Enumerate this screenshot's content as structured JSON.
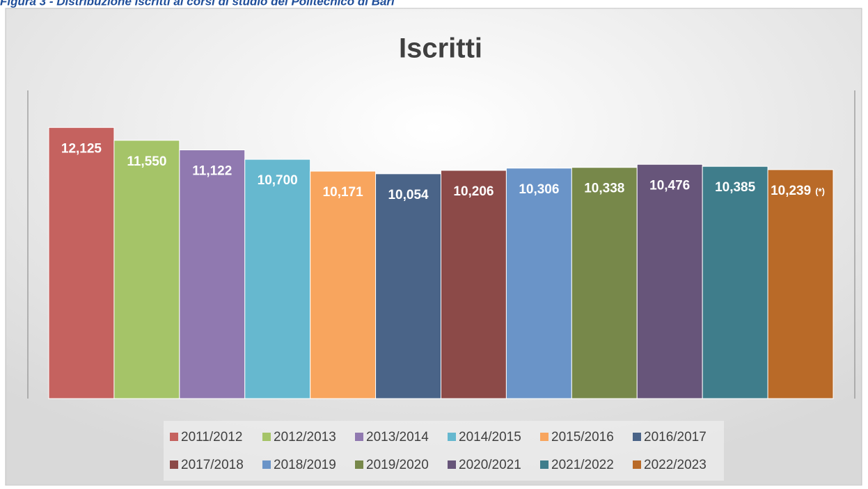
{
  "caption": "Figura 3 - Distribuzione iscritti ai corsi di studio del Politecnico di Bari",
  "chart_data": {
    "type": "bar",
    "title": "Iscritti",
    "ylim": [
      0,
      14000
    ],
    "legend": "bottom",
    "annotation": "(*)",
    "series": [
      {
        "name": "2011/2012",
        "color": "#c5625f",
        "values": [
          12125
        ],
        "value_labels": [
          "12,125"
        ]
      },
      {
        "name": "2012/2013",
        "color": "#a5c468",
        "values": [
          11550
        ],
        "value_labels": [
          "11,550"
        ]
      },
      {
        "name": "2013/2014",
        "color": "#9079b0",
        "values": [
          11122
        ],
        "value_labels": [
          "11,122"
        ]
      },
      {
        "name": "2014/2015",
        "color": "#66b8cf",
        "values": [
          10700
        ],
        "value_labels": [
          "10,700"
        ]
      },
      {
        "name": "2015/2016",
        "color": "#f8a55e",
        "values": [
          10171
        ],
        "value_labels": [
          "10,171"
        ]
      },
      {
        "name": "2016/2017",
        "color": "#4a6488",
        "values": [
          10054
        ],
        "value_labels": [
          "10,054"
        ]
      },
      {
        "name": "2017/2018",
        "color": "#8c4a48",
        "values": [
          10206
        ],
        "value_labels": [
          "10,206"
        ]
      },
      {
        "name": "2018/2019",
        "color": "#6a94c8",
        "values": [
          10306
        ],
        "value_labels": [
          "10,306"
        ]
      },
      {
        "name": "2019/2020",
        "color": "#77884a",
        "values": [
          10338
        ],
        "value_labels": [
          "10,338"
        ]
      },
      {
        "name": "2020/2021",
        "color": "#67557a",
        "values": [
          10476
        ],
        "value_labels": [
          "10,476"
        ]
      },
      {
        "name": "2021/2022",
        "color": "#3f7d8b",
        "values": [
          10385
        ],
        "value_labels": [
          "10,385"
        ]
      },
      {
        "name": "2022/2023",
        "color": "#b96a28",
        "values": [
          10239
        ],
        "value_labels": [
          "10,239"
        ]
      }
    ]
  }
}
